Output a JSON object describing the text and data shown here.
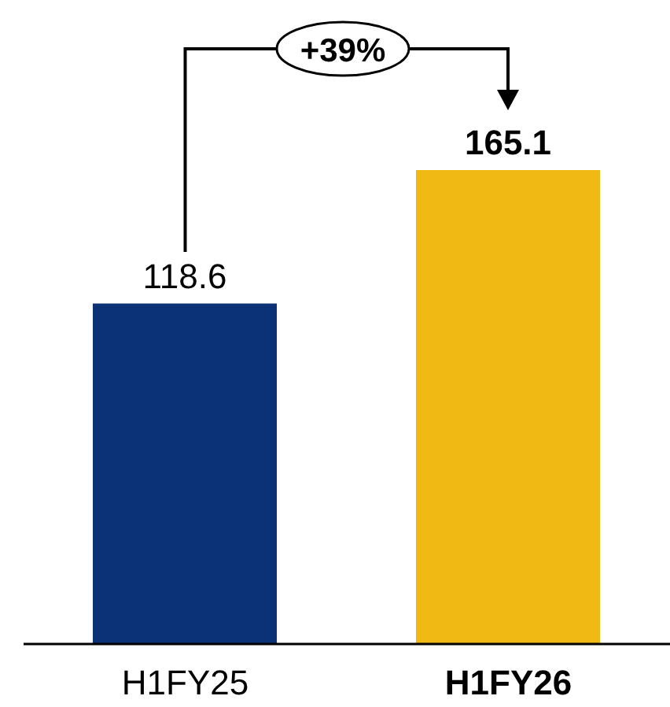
{
  "chart_data": {
    "type": "bar",
    "categories": [
      "H1FY25",
      "H1FY26"
    ],
    "values": [
      118.6,
      165.1
    ],
    "colors": [
      "#0a3274",
      "#f0b914"
    ],
    "data_labels": true,
    "annotations": [
      "+39%"
    ]
  }
}
